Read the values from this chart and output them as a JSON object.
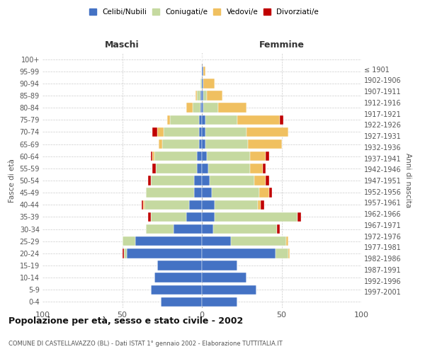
{
  "age_groups": [
    "0-4",
    "5-9",
    "10-14",
    "15-19",
    "20-24",
    "25-29",
    "30-34",
    "35-39",
    "40-44",
    "45-49",
    "50-54",
    "55-59",
    "60-64",
    "65-69",
    "70-74",
    "75-79",
    "80-84",
    "85-89",
    "90-94",
    "95-99",
    "100+"
  ],
  "birth_years": [
    "1997-2001",
    "1992-1996",
    "1987-1991",
    "1982-1986",
    "1977-1981",
    "1972-1976",
    "1967-1971",
    "1962-1966",
    "1957-1961",
    "1952-1956",
    "1947-1951",
    "1942-1946",
    "1937-1941",
    "1932-1936",
    "1927-1931",
    "1922-1926",
    "1917-1921",
    "1912-1916",
    "1907-1911",
    "1902-1906",
    "≤ 1901"
  ],
  "colors": {
    "celibi": "#4472c4",
    "coniugati": "#c5d9a0",
    "vedovi": "#f0c060",
    "divorziati": "#c00000"
  },
  "males": {
    "celibi": [
      26,
      32,
      30,
      28,
      47,
      42,
      18,
      10,
      8,
      5,
      5,
      3,
      3,
      2,
      2,
      2,
      1,
      1,
      0,
      0,
      0
    ],
    "coniugati": [
      0,
      0,
      0,
      0,
      2,
      8,
      17,
      22,
      28,
      30,
      27,
      26,
      27,
      23,
      22,
      18,
      5,
      2,
      1,
      0,
      0
    ],
    "vedovi": [
      0,
      0,
      0,
      0,
      0,
      0,
      0,
      0,
      1,
      0,
      0,
      0,
      1,
      2,
      4,
      2,
      4,
      1,
      0,
      0,
      0
    ],
    "divorziati": [
      0,
      0,
      0,
      0,
      1,
      0,
      0,
      2,
      1,
      0,
      2,
      2,
      1,
      0,
      3,
      0,
      0,
      0,
      0,
      0,
      0
    ]
  },
  "females": {
    "nubili": [
      22,
      34,
      28,
      22,
      46,
      18,
      7,
      8,
      8,
      6,
      5,
      4,
      3,
      2,
      2,
      2,
      1,
      1,
      1,
      1,
      0
    ],
    "coniugate": [
      0,
      0,
      0,
      0,
      8,
      35,
      40,
      52,
      27,
      30,
      28,
      26,
      27,
      27,
      26,
      20,
      9,
      2,
      0,
      0,
      0
    ],
    "vedove": [
      0,
      0,
      0,
      0,
      1,
      1,
      0,
      0,
      2,
      6,
      7,
      8,
      10,
      21,
      26,
      27,
      18,
      10,
      7,
      1,
      0
    ],
    "divorziate": [
      0,
      0,
      0,
      0,
      0,
      0,
      2,
      2,
      2,
      2,
      2,
      2,
      2,
      0,
      0,
      2,
      0,
      0,
      0,
      0,
      0
    ]
  },
  "xlim": 100,
  "title": "Popolazione per età, sesso e stato civile - 2002",
  "subtitle": "COMUNE DI CASTELLAVAZZO (BL) - Dati ISTAT 1° gennaio 2002 - Elaborazione TUTTITALIA.IT",
  "xlabel_left": "Maschi",
  "xlabel_right": "Femmine",
  "ylabel_left": "Fasce di età",
  "ylabel_right": "Anni di nascita"
}
